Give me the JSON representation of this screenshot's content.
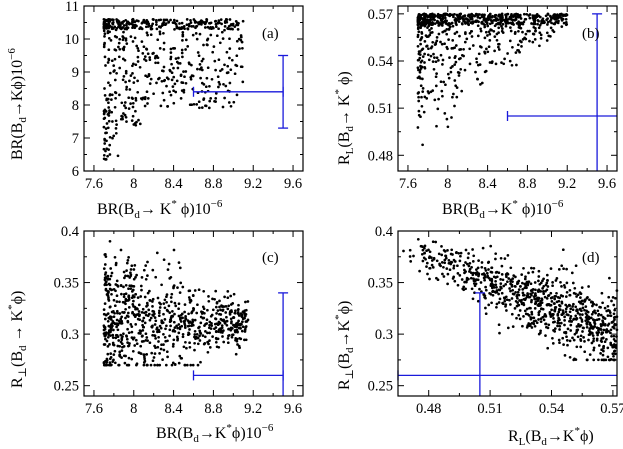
{
  "chart_data": [
    {
      "panel": "(a)",
      "type": "scatter",
      "x_range": [
        7.5,
        9.7
      ],
      "y_range": [
        6,
        11
      ],
      "x_ticks": [
        "7.6",
        "8",
        "8.4",
        "8.8",
        "9.2",
        "9.6"
      ],
      "y_ticks": [
        "6",
        "7",
        "8",
        "9",
        "10",
        "11"
      ],
      "x_tick_values": [
        7.6,
        8.0,
        8.4,
        8.8,
        9.2,
        9.6
      ],
      "y_tick_values": [
        6,
        7,
        8,
        9,
        10,
        11
      ],
      "xlabel": "BR(B_d → K* ϕ)10^-6",
      "ylabel": "BR(B_d→Kϕ)10^-6",
      "points_summary": "dense cloud x 7.7–9.1, y 6.3–10.6, band at y≈10.3–10.6",
      "error_bar": {
        "x": 9.5,
        "x_low": 8.6,
        "x_high": 9.5,
        "y": 8.4,
        "y_low": 7.3,
        "y_high": 9.5,
        "x_open_right": false
      }
    },
    {
      "panel": "(b)",
      "type": "scatter",
      "x_range": [
        7.5,
        9.7
      ],
      "y_range": [
        0.47,
        0.575
      ],
      "x_ticks": [
        "7.6",
        "8",
        "8.4",
        "8.8",
        "9.2",
        "9.6"
      ],
      "y_ticks": [
        "0.48",
        "0.51",
        "0.54",
        "0.57"
      ],
      "x_tick_values": [
        7.6,
        8.0,
        8.4,
        8.8,
        9.2,
        9.6
      ],
      "y_tick_values": [
        0.48,
        0.51,
        0.54,
        0.57
      ],
      "xlabel": "BR(B_d→K* ϕ)10^-6",
      "ylabel": "R_L(B_d→K* ϕ)",
      "points_summary": "dense near y≈0.565–0.57, triangular spread down to 0.48 at low x",
      "error_bar": {
        "x": 9.5,
        "x_low": 8.6,
        "x_high": 9.7,
        "y": 0.505,
        "y_low": 0.47,
        "y_high": 0.57,
        "x_open_right": true
      }
    },
    {
      "panel": "(c)",
      "type": "scatter",
      "x_range": [
        7.5,
        9.7
      ],
      "y_range": [
        0.24,
        0.4
      ],
      "x_ticks": [
        "7.6",
        "8",
        "8.4",
        "8.8",
        "9.2",
        "9.6"
      ],
      "y_ticks": [
        "0.25",
        "0.3",
        "0.35",
        "0.4"
      ],
      "x_tick_values": [
        7.6,
        8.0,
        8.4,
        8.8,
        9.2,
        9.6
      ],
      "y_tick_values": [
        0.25,
        0.3,
        0.35,
        0.4
      ],
      "xlabel": "BR(B_d→K* ϕ)10^-6",
      "ylabel": "R_⊥(B_d → K* ϕ)",
      "points_summary": "cloud y 0.27–0.39 at low x narrowing to ~0.3 at x≈9.1",
      "error_bar": {
        "x": 9.5,
        "x_low": 8.6,
        "x_high": 9.5,
        "y": 0.26,
        "y_low": 0.24,
        "y_high": 0.34,
        "x_open_right": false
      }
    },
    {
      "panel": "(d)",
      "type": "scatter",
      "x_range": [
        0.465,
        0.572
      ],
      "y_range": [
        0.24,
        0.4
      ],
      "x_ticks": [
        "0.48",
        "0.51",
        "0.54",
        "0.57"
      ],
      "y_ticks": [
        "0.25",
        "0.3",
        "0.35",
        "0.4"
      ],
      "x_tick_values": [
        0.48,
        0.51,
        0.54,
        0.57
      ],
      "y_tick_values": [
        0.25,
        0.3,
        0.35,
        0.4
      ],
      "xlabel": "R_L(B_d→K* ϕ)",
      "ylabel": "R_⊥(B_d → K* ϕ)",
      "points_summary": "anti-correlated band from (0.47,0.39) to (0.57,0.28), dense near R_L≈0.56–0.57",
      "error_bar": {
        "x": 0.505,
        "x_low": 0.465,
        "x_high": 0.572,
        "y": 0.26,
        "y_low": 0.24,
        "y_high": 0.34,
        "x_open_right": true
      }
    }
  ],
  "seed": 12345
}
